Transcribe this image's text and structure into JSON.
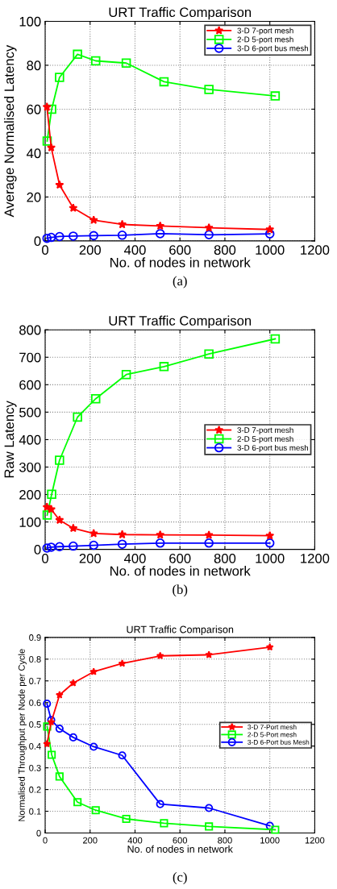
{
  "chart_data": [
    {
      "type": "line",
      "title": "URT Traffic Comparison",
      "xlabel": "No. of nodes in network",
      "ylabel": "Average Normalised Latency",
      "annotations": [
        "(a)"
      ],
      "xlim": [
        0,
        1200
      ],
      "xticks": [
        0,
        200,
        400,
        600,
        800,
        1000,
        1200
      ],
      "ylim": [
        0,
        100
      ],
      "yticks": [
        0,
        20,
        40,
        60,
        80,
        100
      ],
      "grid": true,
      "legend": "top right",
      "series": [
        {
          "name": "3-D 7-port mesh",
          "color": "#ff0000",
          "marker": "star",
          "x": [
            8,
            27,
            64,
            125,
            216,
            343,
            512,
            729,
            1000
          ],
          "values": [
            61,
            42.5,
            25.5,
            15,
            9.5,
            7.5,
            6.8,
            6,
            5.2
          ]
        },
        {
          "name": "2-D 5-port mesh",
          "color": "#00ff00",
          "marker": "square",
          "x": [
            9,
            29,
            64,
            144,
            225,
            361,
            529,
            729,
            1024
          ],
          "values": [
            45.5,
            60,
            74.5,
            85,
            82,
            81,
            72.5,
            69,
            66
          ]
        },
        {
          "name": "3-D 6-port bus mesh",
          "color": "#0000ff",
          "marker": "circle",
          "x": [
            8,
            27,
            64,
            125,
            216,
            343,
            512,
            729,
            1000
          ],
          "values": [
            1.2,
            1.6,
            2,
            2.2,
            2.4,
            2.6,
            3.3,
            2.8,
            3.2
          ]
        }
      ]
    },
    {
      "type": "line",
      "title": "URT Traffic Comparison",
      "xlabel": "No. of nodes in network",
      "ylabel": "Raw Latency",
      "annotations": [
        "(b)"
      ],
      "xlim": [
        0,
        1200
      ],
      "xticks": [
        0,
        200,
        400,
        600,
        800,
        1000,
        1200
      ],
      "ylim": [
        0,
        800
      ],
      "yticks": [
        0,
        100,
        200,
        300,
        400,
        500,
        600,
        700,
        800
      ],
      "grid": true,
      "legend": "right",
      "series": [
        {
          "name": "3-D 7-port mesh",
          "color": "#ff0000",
          "marker": "star",
          "x": [
            8,
            27,
            64,
            125,
            216,
            343,
            512,
            729,
            1000
          ],
          "values": [
            154,
            146,
            107,
            77,
            58,
            54,
            53,
            52,
            50
          ]
        },
        {
          "name": "2-D 5-port mesh",
          "color": "#00ff00",
          "marker": "square",
          "x": [
            9,
            29,
            64,
            144,
            225,
            361,
            529,
            729,
            1024
          ],
          "values": [
            125,
            201,
            325,
            482,
            549,
            637,
            666,
            712,
            767
          ]
        },
        {
          "name": "3-D 6-port bus mesh",
          "color": "#0000ff",
          "marker": "circle",
          "x": [
            8,
            27,
            64,
            125,
            216,
            343,
            512,
            729,
            1000
          ],
          "values": [
            5,
            8,
            10,
            12,
            15,
            19,
            23,
            23,
            23
          ]
        }
      ]
    },
    {
      "type": "line",
      "title": "URT Traffic Comparison",
      "xlabel": "No. of nodes in network",
      "ylabel": "Normalised Throughput per Node per Cycle",
      "annotations": [
        "(c)"
      ],
      "xlim": [
        0,
        1200
      ],
      "xticks": [
        0,
        200,
        400,
        600,
        800,
        1000,
        1200
      ],
      "ylim": [
        0,
        0.9
      ],
      "yticks": [
        0,
        0.1,
        0.2,
        0.3,
        0.4,
        0.5,
        0.6,
        0.7,
        0.8,
        0.9
      ],
      "grid": true,
      "legend": "right",
      "series": [
        {
          "name": "3-D 7-Port mesh",
          "color": "#ff0000",
          "marker": "star",
          "x": [
            8,
            27,
            64,
            125,
            216,
            343,
            512,
            729,
            1000
          ],
          "values": [
            0.41,
            0.51,
            0.635,
            0.69,
            0.742,
            0.78,
            0.815,
            0.82,
            0.855
          ]
        },
        {
          "name": "2-D 5-Port mesh",
          "color": "#00ff00",
          "marker": "square",
          "x": [
            9,
            29,
            64,
            144,
            225,
            361,
            529,
            729,
            1024
          ],
          "values": [
            0.49,
            0.36,
            0.26,
            0.142,
            0.105,
            0.065,
            0.045,
            0.03,
            0.015
          ]
        },
        {
          "name": "3-D 6-Port bus Mesh",
          "color": "#0000ff",
          "marker": "circle",
          "x": [
            8,
            27,
            64,
            125,
            216,
            343,
            512,
            729,
            1000
          ],
          "values": [
            0.595,
            0.52,
            0.48,
            0.44,
            0.397,
            0.357,
            0.133,
            0.115,
            0.033
          ]
        }
      ]
    }
  ]
}
